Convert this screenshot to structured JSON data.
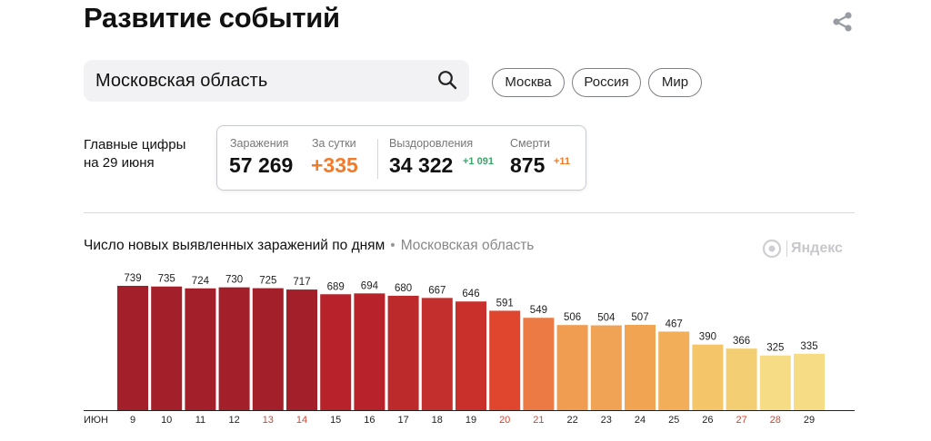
{
  "header": {
    "title": "Развитие событий",
    "share_icon": "share-icon"
  },
  "search": {
    "value": "Московская область",
    "placeholder": ""
  },
  "chips": [
    "Москва",
    "Россия",
    "Мир"
  ],
  "summary": {
    "label_line1": "Главные цифры",
    "label_line2": "на 29 июня",
    "infected_label": "Заражения",
    "infected_value": "57 269",
    "daily_label": "За сутки",
    "daily_value": "+335",
    "recovered_label": "Выздоровления",
    "recovered_value": "34 322",
    "recovered_delta": "+1 091",
    "deaths_label": "Смерти",
    "deaths_value": "875",
    "deaths_delta": "+11"
  },
  "chart_section": {
    "title": "Число новых выявленных заражений по дням",
    "separator": "•",
    "region": "Московская область",
    "brand": "Яндекс"
  },
  "colors": {
    "accent_orange": "#f07b2b",
    "positive_green": "#3aa56a",
    "weekend_red": "#e0402b"
  },
  "chart_data": {
    "type": "bar",
    "x_prefix": "ИЮН",
    "categories": [
      "9",
      "10",
      "11",
      "12",
      "13",
      "14",
      "15",
      "16",
      "17",
      "18",
      "19",
      "20",
      "21",
      "22",
      "23",
      "24",
      "25",
      "26",
      "27",
      "28",
      "29"
    ],
    "values": [
      739,
      735,
      724,
      730,
      725,
      717,
      689,
      694,
      680,
      667,
      646,
      591,
      549,
      506,
      504,
      507,
      467,
      390,
      366,
      325,
      335
    ],
    "weekend_days": [
      "13",
      "14",
      "20",
      "21",
      "27",
      "28"
    ],
    "ylim": [
      0,
      760
    ],
    "grid": false,
    "legend": "none"
  }
}
